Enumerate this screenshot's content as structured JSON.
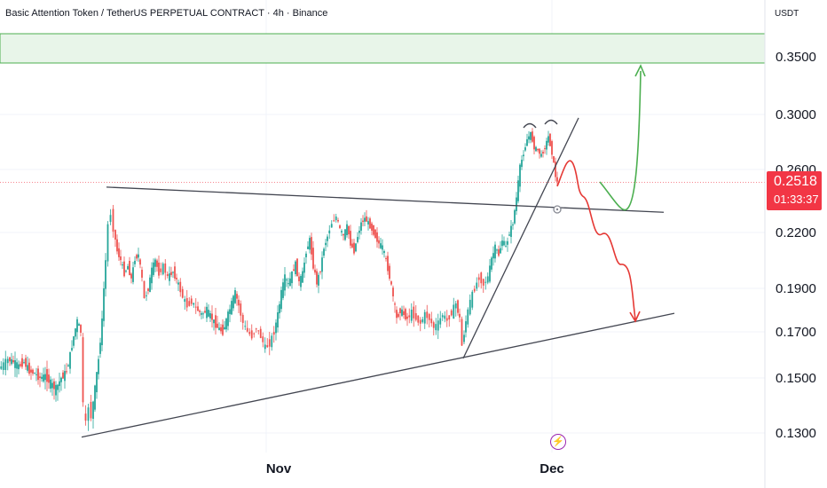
{
  "header": {
    "title": "Basic Attention Token / TetherUS PERPETUAL CONTRACT · 4h · Binance",
    "unit": "USDT"
  },
  "current_price": {
    "value": "0.2518",
    "countdown": "01:33:37"
  },
  "event_icon": "lightning-icon",
  "colors": {
    "up": "#26a69a",
    "down": "#ef5350",
    "price_label": "#f23645",
    "bull_arrow": "#4caf50",
    "bear_arrow": "#e53935",
    "resistance_zone": "#e8f5e9"
  },
  "chart_data": {
    "type": "candlestick",
    "title": "Basic Attention Token / TetherUS PERPETUAL CONTRACT · 4h · Binance",
    "y_ticks": [
      "0.3500",
      "0.3000",
      "0.2600",
      "0.2200",
      "0.1900",
      "0.1700",
      "0.1500",
      "0.1300"
    ],
    "x_ticks": [
      "Nov",
      "Dec"
    ],
    "last_price": 0.2518,
    "trendlines": [
      {
        "name": "triangle-top",
        "from": [
          0.2488
        ],
        "to": [
          0.2328
        ]
      },
      {
        "name": "triangle-bottom",
        "from": [
          0.1285
        ],
        "to": [
          0.1785
        ]
      },
      {
        "name": "rising-support",
        "from": [
          0.1585
        ],
        "to": [
          0.2975
        ]
      }
    ],
    "zone": {
      "from": 0.345,
      "to": 0.372
    },
    "path": [
      [
        0,
        0.154
      ],
      [
        5,
        0.156
      ],
      [
        10,
        0.158
      ],
      [
        16,
        0.157
      ],
      [
        22,
        0.155
      ],
      [
        28,
        0.157
      ],
      [
        34,
        0.153
      ],
      [
        40,
        0.152
      ],
      [
        46,
        0.15
      ],
      [
        52,
        0.151
      ],
      [
        58,
        0.148
      ],
      [
        64,
        0.146
      ],
      [
        70,
        0.15
      ],
      [
        76,
        0.153
      ],
      [
        80,
        0.16
      ],
      [
        84,
        0.168
      ],
      [
        88,
        0.175
      ],
      [
        92,
        0.17
      ],
      [
        95,
        0.14
      ],
      [
        98,
        0.133
      ],
      [
        101,
        0.14
      ],
      [
        104,
        0.136
      ],
      [
        108,
        0.146
      ],
      [
        112,
        0.158
      ],
      [
        116,
        0.175
      ],
      [
        120,
        0.205
      ],
      [
        123,
        0.225
      ],
      [
        126,
        0.232
      ],
      [
        129,
        0.222
      ],
      [
        133,
        0.21
      ],
      [
        137,
        0.205
      ],
      [
        141,
        0.198
      ],
      [
        145,
        0.202
      ],
      [
        149,
        0.195
      ],
      [
        153,
        0.206
      ],
      [
        157,
        0.208
      ],
      [
        161,
        0.195
      ],
      [
        164,
        0.185
      ],
      [
        168,
        0.19
      ],
      [
        172,
        0.2
      ],
      [
        176,
        0.205
      ],
      [
        180,
        0.198
      ],
      [
        185,
        0.202
      ],
      [
        190,
        0.196
      ],
      [
        196,
        0.199
      ],
      [
        202,
        0.192
      ],
      [
        207,
        0.186
      ],
      [
        212,
        0.182
      ],
      [
        217,
        0.184
      ],
      [
        222,
        0.181
      ],
      [
        228,
        0.178
      ],
      [
        234,
        0.18
      ],
      [
        240,
        0.176
      ],
      [
        246,
        0.172
      ],
      [
        252,
        0.17
      ],
      [
        258,
        0.178
      ],
      [
        262,
        0.183
      ],
      [
        266,
        0.188
      ],
      [
        270,
        0.182
      ],
      [
        275,
        0.174
      ],
      [
        280,
        0.17
      ],
      [
        285,
        0.168
      ],
      [
        290,
        0.172
      ],
      [
        295,
        0.168
      ],
      [
        300,
        0.163
      ],
      [
        305,
        0.165
      ],
      [
        310,
        0.17
      ],
      [
        314,
        0.178
      ],
      [
        318,
        0.188
      ],
      [
        322,
        0.196
      ],
      [
        326,
        0.192
      ],
      [
        330,
        0.198
      ],
      [
        334,
        0.203
      ],
      [
        338,
        0.193
      ],
      [
        342,
        0.198
      ],
      [
        346,
        0.21
      ],
      [
        350,
        0.216
      ],
      [
        354,
        0.202
      ],
      [
        358,
        0.193
      ],
      [
        362,
        0.2
      ],
      [
        366,
        0.212
      ],
      [
        370,
        0.218
      ],
      [
        375,
        0.226
      ],
      [
        380,
        0.23
      ],
      [
        384,
        0.222
      ],
      [
        388,
        0.218
      ],
      [
        392,
        0.224
      ],
      [
        396,
        0.214
      ],
      [
        400,
        0.21
      ],
      [
        404,
        0.218
      ],
      [
        408,
        0.226
      ],
      [
        412,
        0.229
      ],
      [
        416,
        0.226
      ],
      [
        420,
        0.222
      ],
      [
        424,
        0.218
      ],
      [
        428,
        0.214
      ],
      [
        432,
        0.212
      ],
      [
        436,
        0.205
      ],
      [
        440,
        0.196
      ],
      [
        444,
        0.186
      ],
      [
        448,
        0.176
      ],
      [
        452,
        0.18
      ],
      [
        456,
        0.178
      ],
      [
        460,
        0.176
      ],
      [
        465,
        0.179
      ],
      [
        470,
        0.176
      ],
      [
        475,
        0.174
      ],
      [
        480,
        0.178
      ],
      [
        485,
        0.176
      ],
      [
        490,
        0.172
      ],
      [
        495,
        0.174
      ],
      [
        500,
        0.178
      ],
      [
        505,
        0.175
      ],
      [
        510,
        0.179
      ],
      [
        515,
        0.183
      ],
      [
        519,
        0.176
      ],
      [
        522,
        0.164
      ],
      [
        526,
        0.175
      ],
      [
        531,
        0.184
      ],
      [
        536,
        0.19
      ],
      [
        541,
        0.196
      ],
      [
        546,
        0.192
      ],
      [
        551,
        0.196
      ],
      [
        555,
        0.206
      ],
      [
        559,
        0.212
      ],
      [
        563,
        0.208
      ],
      [
        567,
        0.216
      ],
      [
        571,
        0.212
      ],
      [
        575,
        0.22
      ],
      [
        579,
        0.226
      ],
      [
        583,
        0.242
      ],
      [
        587,
        0.262
      ],
      [
        591,
        0.272
      ],
      [
        595,
        0.282
      ],
      [
        599,
        0.286
      ],
      [
        603,
        0.276
      ],
      [
        607,
        0.274
      ],
      [
        611,
        0.27
      ],
      [
        615,
        0.276
      ],
      [
        619,
        0.284
      ],
      [
        623,
        0.272
      ],
      [
        627,
        0.256
      ],
      [
        629,
        0.2518
      ]
    ]
  }
}
